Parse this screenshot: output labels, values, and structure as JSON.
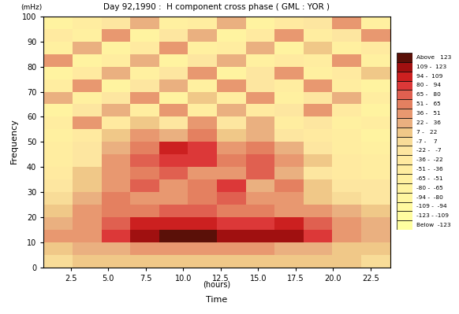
{
  "chart_data": {
    "type": "heatmap",
    "title": "Day 92,1990 :  H component cross phase ( GML : YOR )",
    "x_label": "Time",
    "x_unit": "(hours)",
    "y_label": "Frequency",
    "y_unit": "(mHz)",
    "xlim": [
      0.7,
      23.8
    ],
    "xticks": [
      2.5,
      5.0,
      7.5,
      10.0,
      12.5,
      15.0,
      17.5,
      20.0,
      22.5
    ],
    "ylim": [
      0,
      100
    ],
    "yticks": [
      0,
      10,
      20,
      30,
      40,
      50,
      60,
      70,
      80,
      90,
      100
    ],
    "x_edges": [
      0.7,
      2.625,
      4.55,
      6.475,
      8.4,
      10.325,
      12.25,
      14.175,
      16.1,
      18.025,
      19.95,
      21.875,
      23.8
    ],
    "y_edges": [
      0,
      5,
      10,
      15,
      20,
      25,
      30,
      35,
      40,
      45,
      50,
      55,
      60,
      65,
      70,
      75,
      80,
      85,
      90,
      95,
      100
    ],
    "cells": [
      [
        5,
        10,
        12,
        15,
        15,
        12,
        15,
        12,
        10,
        10,
        8,
        5
      ],
      [
        20,
        25,
        30,
        40,
        45,
        40,
        45,
        40,
        35,
        30,
        20,
        15
      ],
      [
        40,
        50,
        80,
        110,
        125,
        130,
        120,
        115,
        120,
        90,
        50,
        30
      ],
      [
        35,
        45,
        70,
        95,
        100,
        95,
        90,
        85,
        95,
        70,
        40,
        25
      ],
      [
        20,
        40,
        55,
        60,
        70,
        65,
        55,
        60,
        50,
        40,
        25,
        10
      ],
      [
        0,
        30,
        60,
        50,
        40,
        55,
        70,
        45,
        50,
        20,
        5,
        -10
      ],
      [
        -20,
        20,
        50,
        70,
        40,
        60,
        80,
        35,
        60,
        10,
        -15,
        -20
      ],
      [
        -30,
        10,
        40,
        55,
        75,
        45,
        50,
        70,
        30,
        -10,
        -30,
        -40
      ],
      [
        -40,
        -10,
        45,
        70,
        90,
        85,
        60,
        75,
        40,
        20,
        -30,
        -50
      ],
      [
        -50,
        -20,
        30,
        60,
        95,
        80,
        40,
        55,
        30,
        -10,
        -40,
        -60
      ],
      [
        -60,
        -30,
        10,
        40,
        30,
        55,
        20,
        35,
        -10,
        -30,
        -50,
        -70
      ],
      [
        -40,
        40,
        -30,
        20,
        -20,
        45,
        -10,
        25,
        -40,
        -20,
        -60,
        -50
      ],
      [
        -70,
        -20,
        30,
        -40,
        40,
        -50,
        35,
        -30,
        -20,
        40,
        -30,
        -70
      ],
      [
        30,
        -60,
        -20,
        45,
        -70,
        20,
        -40,
        50,
        -60,
        -10,
        35,
        -40
      ],
      [
        -50,
        40,
        -70,
        -10,
        30,
        -60,
        40,
        -20,
        -50,
        50,
        -40,
        -80
      ],
      [
        -80,
        -30,
        35,
        -60,
        -20,
        45,
        -70,
        -10,
        40,
        -60,
        -30,
        20
      ],
      [
        40,
        -70,
        -40,
        25,
        -80,
        -20,
        30,
        -60,
        -30,
        -40,
        45,
        -60
      ],
      [
        -60,
        30,
        -80,
        -30,
        40,
        -60,
        -40,
        35,
        -70,
        20,
        -60,
        -30
      ],
      [
        -30,
        -60,
        40,
        -70,
        -20,
        30,
        -80,
        -30,
        45,
        -50,
        -20,
        50
      ],
      [
        -70,
        -40,
        -20,
        35,
        -60,
        -40,
        25,
        -70,
        -30,
        -20,
        40,
        -60
      ]
    ],
    "colorbar": {
      "levels": [
        -123,
        -109,
        -94,
        -80,
        -65,
        -51,
        -36,
        -22,
        -7,
        7,
        22,
        36,
        51,
        65,
        80,
        94,
        109,
        123
      ],
      "labels": [
        "Above   123",
        "109 -  123",
        "94 -  109",
        "80 -   94",
        "65 -   80",
        "51 -   65",
        "36 -   51",
        "22 -   36",
        "7 -   22",
        "-7 -    7",
        "-22 -   -7",
        "-36 -  -22",
        "-51 -  -36",
        "-65 -  -51",
        "-80 -  -65",
        "-94 -  -80",
        "-109 -  -94",
        "-123 - -109",
        "Below  -123"
      ],
      "colors": [
        "#5a1008",
        "#a01010",
        "#cc2020",
        "#dc3838",
        "#e06050",
        "#e48060",
        "#e89870",
        "#eab080",
        "#f0c888",
        "#f8dc98",
        "#fde6a0",
        "#ffeaa0",
        "#ffeda0",
        "#fff0a0",
        "#fff3a0",
        "#fff6a0",
        "#fff9a0",
        "#fffca0",
        "#ffffa0"
      ]
    }
  }
}
